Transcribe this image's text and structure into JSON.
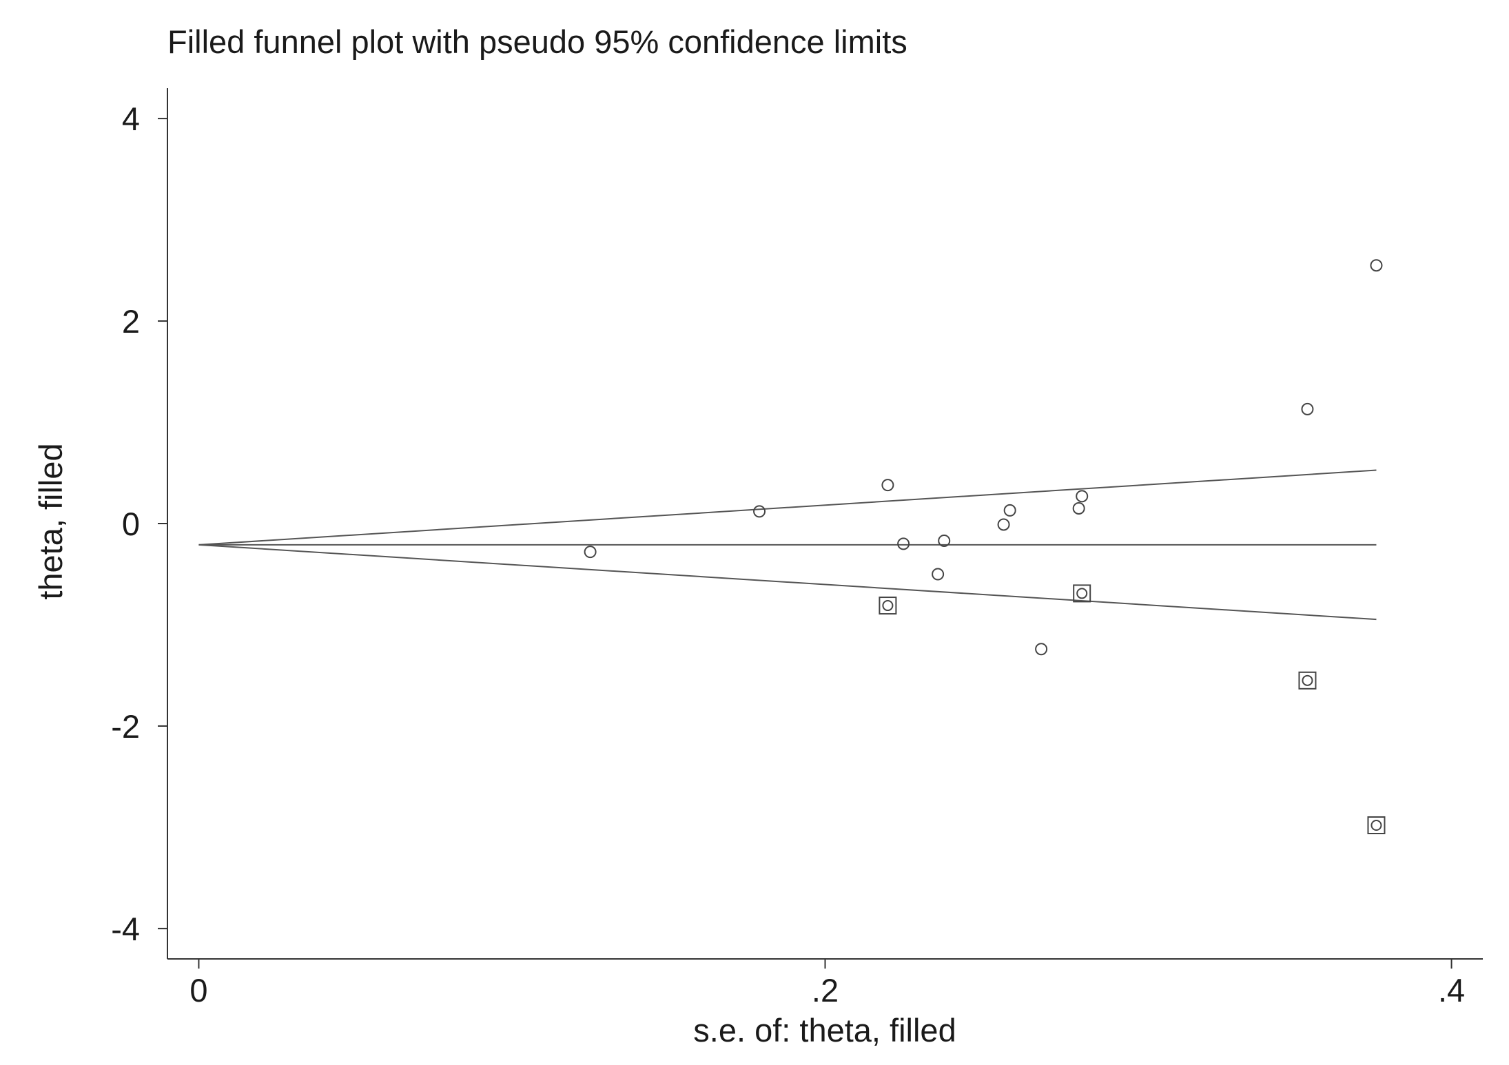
{
  "chart_data": {
    "type": "scatter",
    "title": "Filled funnel plot with pseudo 95% confidence limits",
    "xlabel": "s.e. of: theta, filled",
    "ylabel": "theta, filled",
    "xlim": [
      -0.01,
      0.41
    ],
    "ylim": [
      -4.3,
      4.3
    ],
    "x_ticks": [
      0,
      0.2,
      0.4
    ],
    "x_tick_labels": [
      "0",
      ".2",
      ".4"
    ],
    "y_ticks": [
      -4,
      -2,
      0,
      2,
      4
    ],
    "y_tick_labels": [
      "-4",
      "-2",
      "0",
      "2",
      "4"
    ],
    "grid": false,
    "pooled_estimate": -0.21,
    "funnel_max_se": 0.376,
    "observed_points": [
      {
        "x": 0.125,
        "y": -0.28
      },
      {
        "x": 0.179,
        "y": 0.12
      },
      {
        "x": 0.22,
        "y": 0.38
      },
      {
        "x": 0.225,
        "y": -0.2
      },
      {
        "x": 0.236,
        "y": -0.5
      },
      {
        "x": 0.238,
        "y": -0.17
      },
      {
        "x": 0.257,
        "y": -0.01
      },
      {
        "x": 0.259,
        "y": 0.13
      },
      {
        "x": 0.269,
        "y": -1.24
      },
      {
        "x": 0.281,
        "y": 0.15
      },
      {
        "x": 0.282,
        "y": 0.27
      },
      {
        "x": 0.354,
        "y": 1.13
      },
      {
        "x": 0.376,
        "y": 2.55
      }
    ],
    "filled_points": [
      {
        "x": 0.22,
        "y": -0.81
      },
      {
        "x": 0.282,
        "y": -0.69
      },
      {
        "x": 0.354,
        "y": -1.55
      },
      {
        "x": 0.376,
        "y": -2.98
      }
    ],
    "colors": {
      "axis": "#333333",
      "line": "#555555",
      "marker": "#444444"
    }
  }
}
